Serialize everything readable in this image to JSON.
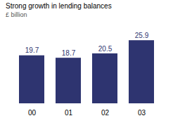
{
  "chart_data": {
    "type": "bar",
    "title": "Strong growth in lending balances",
    "subtitle": "£ billion",
    "categories": [
      "00",
      "01",
      "02",
      "03"
    ],
    "values": [
      19.7,
      18.7,
      20.5,
      25.9
    ],
    "color": "#2e3470",
    "ylim": [
      0,
      30
    ],
    "data_labels": true,
    "tick_labels": "x",
    "grid": false
  }
}
